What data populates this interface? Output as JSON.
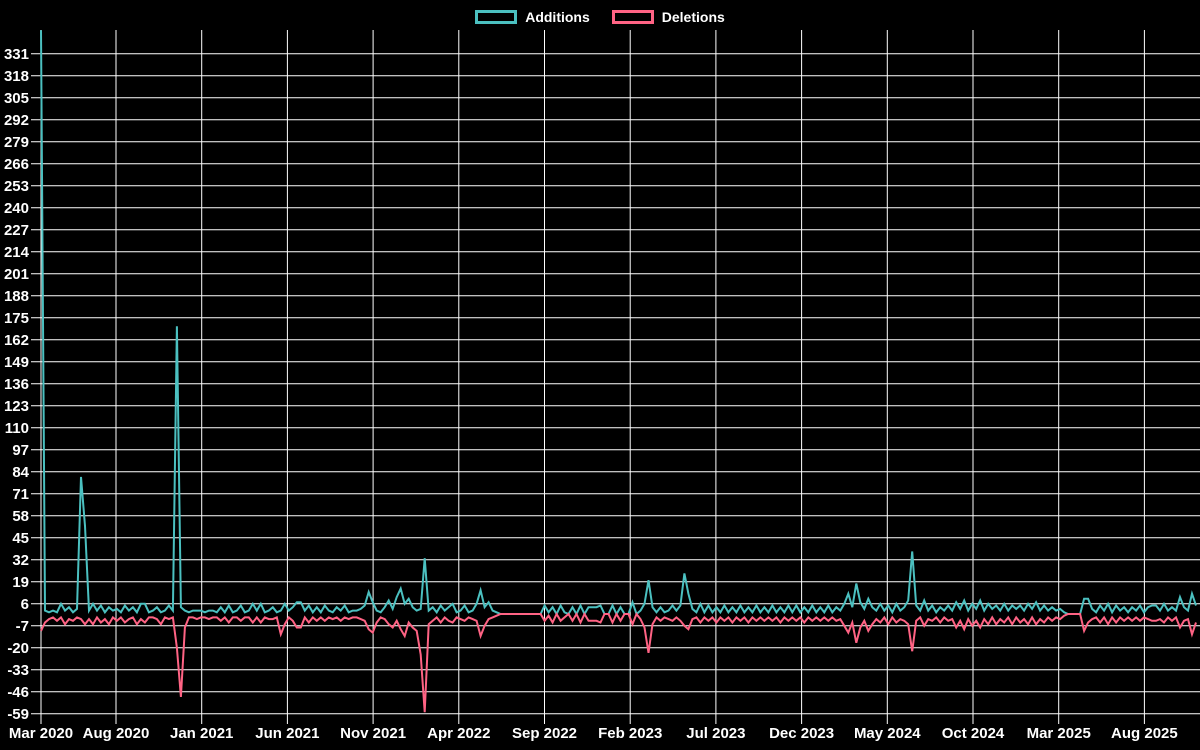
{
  "chart_data": {
    "type": "line",
    "title": "",
    "xlabel": "",
    "ylabel": "",
    "background_color": "#000000",
    "grid_color": "#ffffff",
    "text_color": "#ffffff",
    "grid": "on",
    "legend_position": "top-center",
    "x_unit": "week",
    "x_tick_labels": [
      "Mar 2020",
      "Aug 2020",
      "Jan 2021",
      "Jun 2021",
      "Nov 2021",
      "Apr 2022",
      "Sep 2022",
      "Feb 2023",
      "Jul 2023",
      "Dec 2023",
      "May 2024",
      "Oct 2024",
      "Mar 2025",
      "Aug 2025"
    ],
    "y_ticks": [
      331,
      318,
      305,
      292,
      279,
      266,
      253,
      240,
      227,
      214,
      201,
      188,
      175,
      162,
      149,
      136,
      123,
      110,
      97,
      84,
      71,
      58,
      45,
      32,
      19,
      6,
      -7,
      -20,
      -33,
      -46,
      -59
    ],
    "ylim": [
      -59,
      344
    ],
    "series": [
      {
        "name": "Additions",
        "color": "#4bc0c0",
        "values": [
          345,
          2,
          1,
          2,
          1,
          6,
          2,
          4,
          1,
          3,
          81,
          52,
          2,
          6,
          2,
          5,
          1,
          4,
          2,
          3,
          1,
          5,
          2,
          4,
          1,
          6,
          6,
          1,
          2,
          4,
          1,
          2,
          5,
          2,
          170,
          4,
          2,
          1,
          2,
          2,
          2,
          1,
          2,
          2,
          1,
          4,
          1,
          5,
          1,
          2,
          5,
          1,
          2,
          6,
          2,
          6,
          1,
          2,
          4,
          1,
          2,
          6,
          2,
          4,
          7,
          7,
          2,
          5,
          1,
          4,
          1,
          5,
          2,
          1,
          4,
          2,
          5,
          1,
          2,
          2,
          3,
          5,
          13,
          7,
          2,
          1,
          4,
          8,
          3,
          10,
          15,
          6,
          9,
          4,
          2,
          3,
          33,
          2,
          4,
          1,
          5,
          2,
          4,
          6,
          1,
          2,
          5,
          1,
          2,
          6,
          14,
          4,
          7,
          2,
          1,
          0,
          0,
          0,
          0,
          0,
          0,
          0,
          0,
          0,
          0,
          0,
          5,
          1,
          4,
          0,
          5,
          1,
          0,
          4,
          0,
          5,
          0,
          4,
          4,
          4,
          5,
          0,
          0,
          5,
          0,
          4,
          0,
          0,
          7,
          0,
          2,
          6,
          20,
          4,
          1,
          4,
          1,
          2,
          5,
          2,
          5,
          24,
          12,
          3,
          1,
          6,
          1,
          5,
          1,
          4,
          1,
          5,
          1,
          4,
          1,
          5,
          1,
          4,
          1,
          5,
          1,
          4,
          1,
          5,
          1,
          4,
          1,
          5,
          1,
          5,
          1,
          4,
          1,
          5,
          1,
          4,
          1,
          5,
          1,
          4,
          2,
          6,
          12,
          4,
          18,
          7,
          3,
          9,
          4,
          2,
          6,
          2,
          5,
          1,
          6,
          2,
          4,
          8,
          37,
          5,
          2,
          8,
          2,
          5,
          1,
          4,
          2,
          5,
          2,
          7,
          3,
          8,
          2,
          6,
          3,
          8,
          2,
          6,
          3,
          5,
          2,
          6,
          2,
          5,
          3,
          5,
          2,
          6,
          3,
          7,
          2,
          5,
          2,
          4,
          2,
          3,
          1,
          0,
          0,
          0,
          0,
          9,
          9,
          3,
          1,
          5,
          2,
          6,
          1,
          5,
          2,
          4,
          1,
          4,
          2,
          5,
          1,
          4,
          5,
          5,
          2,
          6,
          2,
          4,
          2,
          10,
          4,
          2,
          12,
          5
        ]
      },
      {
        "name": "Deletions",
        "color": "#ff6384",
        "values": [
          -10,
          -5,
          -3,
          -2,
          -4,
          -2,
          -6,
          -3,
          -4,
          -2,
          -3,
          -6,
          -3,
          -6,
          -2,
          -5,
          -3,
          -6,
          -2,
          -4,
          -2,
          -5,
          -3,
          -2,
          -6,
          -3,
          -5,
          -2,
          -2,
          -3,
          -6,
          -2,
          -3,
          -2,
          -20,
          -49,
          -8,
          -2,
          -2,
          -3,
          -2,
          -2,
          -3,
          -2,
          -2,
          -4,
          -2,
          -5,
          -2,
          -2,
          -4,
          -2,
          -2,
          -5,
          -2,
          -5,
          -2,
          -3,
          -3,
          -2,
          -12,
          -6,
          -2,
          -4,
          -8,
          -8,
          -2,
          -5,
          -2,
          -4,
          -2,
          -4,
          -2,
          -3,
          -2,
          -4,
          -2,
          -3,
          -2,
          -2,
          -3,
          -4,
          -9,
          -11,
          -5,
          -2,
          -3,
          -6,
          -8,
          -4,
          -9,
          -13,
          -5,
          -8,
          -10,
          -24,
          -58,
          -6,
          -4,
          -2,
          -5,
          -2,
          -4,
          -5,
          -2,
          -3,
          -4,
          -2,
          -3,
          -4,
          -13,
          -7,
          -3,
          -2,
          -1,
          0,
          0,
          0,
          0,
          0,
          0,
          0,
          0,
          0,
          0,
          0,
          -4,
          -1,
          -5,
          0,
          -4,
          -2,
          0,
          -4,
          0,
          -5,
          0,
          -4,
          -4,
          -4,
          -5,
          0,
          0,
          -5,
          0,
          -4,
          0,
          0,
          -6,
          0,
          -3,
          -8,
          -23,
          -6,
          -2,
          -4,
          -2,
          -3,
          -4,
          -2,
          -4,
          -7,
          -9,
          -3,
          -2,
          -5,
          -2,
          -4,
          -2,
          -5,
          -2,
          -4,
          -2,
          -5,
          -2,
          -4,
          -2,
          -5,
          -2,
          -4,
          -2,
          -4,
          -2,
          -4,
          -2,
          -5,
          -2,
          -4,
          -2,
          -4,
          -2,
          -5,
          -2,
          -4,
          -2,
          -4,
          -2,
          -4,
          -2,
          -4,
          -3,
          -7,
          -11,
          -5,
          -17,
          -8,
          -4,
          -10,
          -6,
          -3,
          -5,
          -2,
          -6,
          -2,
          -5,
          -3,
          -4,
          -6,
          -22,
          -4,
          -2,
          -7,
          -3,
          -4,
          -2,
          -5,
          -2,
          -4,
          -3,
          -8,
          -4,
          -9,
          -3,
          -7,
          -4,
          -8,
          -3,
          -6,
          -2,
          -6,
          -3,
          -5,
          -2,
          -6,
          -2,
          -5,
          -3,
          -6,
          -2,
          -6,
          -3,
          -5,
          -2,
          -4,
          -2,
          -3,
          -1,
          0,
          0,
          0,
          0,
          -10,
          -5,
          -3,
          -2,
          -5,
          -2,
          -6,
          -2,
          -5,
          -2,
          -4,
          -2,
          -4,
          -2,
          -4,
          -2,
          -3,
          -4,
          -4,
          -3,
          -5,
          -2,
          -4,
          -2,
          -8,
          -4,
          -3,
          -12,
          -5
        ]
      }
    ]
  }
}
